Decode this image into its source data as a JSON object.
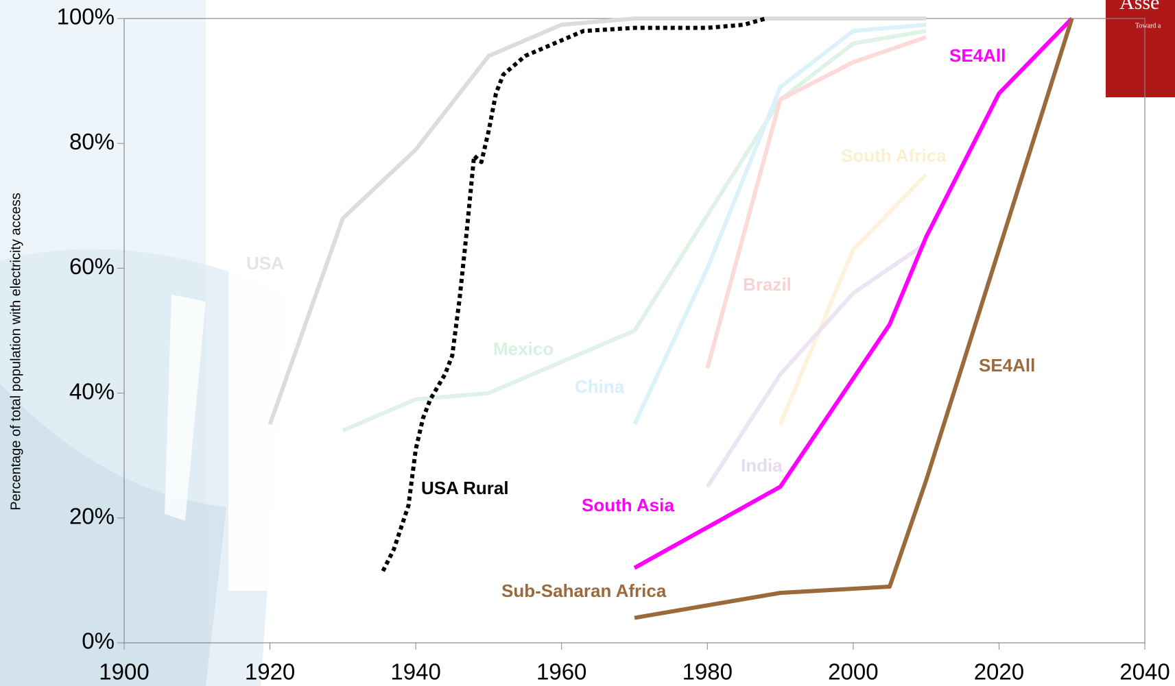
{
  "chart_data": {
    "type": "line",
    "y_axis_label": "Percentage of total population with electricity access",
    "xlim": [
      1900,
      2040
    ],
    "xticks": [
      1900,
      1920,
      1940,
      1960,
      1980,
      2000,
      2020,
      2040
    ],
    "ylim": [
      0,
      100
    ],
    "yticks": [
      {
        "value": 0,
        "label": "0%"
      },
      {
        "value": 20,
        "label": "20%"
      },
      {
        "value": 40,
        "label": "40%"
      },
      {
        "value": 60,
        "label": "60%"
      },
      {
        "value": 80,
        "label": "80%"
      },
      {
        "value": 100,
        "label": "100%"
      }
    ],
    "series": [
      {
        "name": "USA",
        "color": "#dcdcdc",
        "label_color": "#e4e4e4",
        "x": [
          1920,
          1930,
          1940,
          1950,
          1960,
          1970,
          2010
        ],
        "values": [
          35,
          68,
          79,
          94,
          99,
          100,
          100
        ]
      },
      {
        "name": "Mexico",
        "color": "#dff2e6",
        "label_color": "#d8f0e0",
        "x": [
          1930,
          1940,
          1950,
          1970,
          1990,
          2000,
          2010
        ],
        "values": [
          34,
          39,
          40,
          50,
          87,
          96,
          98
        ]
      },
      {
        "name": "China",
        "color": "#dcf2fb",
        "label_color": "#d6f0fb",
        "x": [
          1970,
          1980,
          1990,
          2000,
          2010
        ],
        "values": [
          35,
          60,
          89,
          98,
          99
        ]
      },
      {
        "name": "Brazil",
        "color": "#fcdada",
        "label_color": "#fbd0d0",
        "x": [
          1980,
          1990,
          2000,
          2010
        ],
        "values": [
          44,
          87,
          93,
          97
        ]
      },
      {
        "name": "South Africa",
        "color": "#fdf3dc",
        "label_color": "#fcefd0",
        "x": [
          1990,
          2000,
          2010
        ],
        "values": [
          35,
          63,
          75
        ]
      },
      {
        "name": "India",
        "color": "#ece4f3",
        "label_color": "#e6dcf0",
        "x": [
          1980,
          1990,
          2000,
          2010
        ],
        "values": [
          25,
          43,
          56,
          64
        ]
      },
      {
        "name": "USA Rural",
        "color": "#000000",
        "label_color": "#000000",
        "dashed": true,
        "x": [
          1935.5,
          1937,
          1939,
          1940,
          1941,
          1942,
          1944,
          1945,
          1946,
          1947,
          1948,
          1949,
          1950,
          1951,
          1952,
          1955,
          1960,
          1963,
          1970,
          1980,
          1985,
          1988
        ],
        "values": [
          11.5,
          15,
          22,
          31,
          36,
          39,
          43,
          46,
          55,
          66,
          78,
          77,
          82,
          88,
          91,
          94,
          96.5,
          98,
          98.5,
          98.5,
          99,
          100
        ]
      },
      {
        "name": "South Asia",
        "color": "#ff00ff",
        "label_color": "#ff00ff",
        "x": [
          1970,
          1990,
          2005,
          2010,
          2020,
          2030
        ],
        "values": [
          12,
          25,
          51,
          65,
          88,
          100
        ]
      },
      {
        "name": "Sub-Saharan Africa",
        "color": "#9b6a3c",
        "label_color": "#9b6a3c",
        "x": [
          1970,
          1990,
          2005,
          2010,
          2030
        ],
        "values": [
          4,
          8,
          9,
          26,
          100
        ]
      }
    ],
    "annotations": [
      {
        "text": "SE4All",
        "color": "#ff00ff"
      },
      {
        "text": "SE4All",
        "color": "#9b6a3c"
      }
    ]
  },
  "logo": {
    "title": "Asse",
    "subtitle": "Toward a"
  }
}
